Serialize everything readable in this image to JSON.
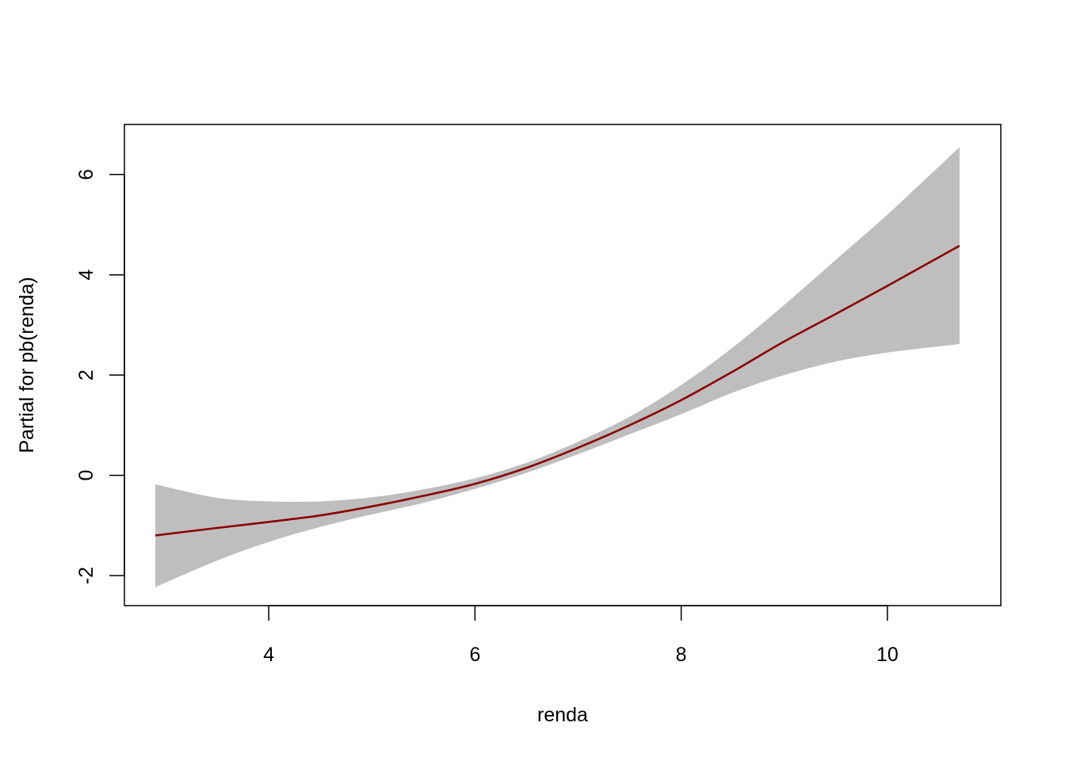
{
  "chart_data": {
    "type": "line",
    "title": "",
    "xlabel": "renda",
    "ylabel": "Partial for pb(renda)",
    "xlim": [
      2.6,
      11.1
    ],
    "ylim": [
      -2.6,
      7.0
    ],
    "x_ticks": [
      4,
      6,
      8,
      10
    ],
    "y_ticks": [
      -2,
      0,
      2,
      4,
      6
    ],
    "x_tick_labels": [
      "4",
      "6",
      "8",
      "10"
    ],
    "y_tick_labels": [
      "-2",
      "0",
      "2",
      "4",
      "6"
    ],
    "grid": false,
    "legend": "none",
    "colors": {
      "line": "#8B0000",
      "band": "#BEBEBE",
      "axis": "#000000"
    },
    "series": [
      {
        "role": "fit",
        "x": [
          2.9,
          3.5,
          4.0,
          4.5,
          5.0,
          5.5,
          6.0,
          6.5,
          7.0,
          7.5,
          8.0,
          8.5,
          9.0,
          9.5,
          10.0,
          10.7
        ],
        "y": [
          -1.2,
          -1.05,
          -0.93,
          -0.8,
          -0.62,
          -0.41,
          -0.17,
          0.15,
          0.55,
          1.0,
          1.5,
          2.07,
          2.67,
          3.22,
          3.78,
          4.58
        ]
      },
      {
        "role": "band",
        "x": [
          2.9,
          3.5,
          4.0,
          4.5,
          5.0,
          5.5,
          6.0,
          6.5,
          7.0,
          7.5,
          8.0,
          8.5,
          9.0,
          9.5,
          10.0,
          10.7
        ],
        "lower": [
          -2.23,
          -1.7,
          -1.33,
          -1.03,
          -0.78,
          -0.55,
          -0.27,
          0.05,
          0.42,
          0.82,
          1.22,
          1.65,
          2.0,
          2.27,
          2.45,
          2.62
        ],
        "upper": [
          -0.18,
          -0.45,
          -0.52,
          -0.52,
          -0.44,
          -0.28,
          -0.06,
          0.25,
          0.67,
          1.17,
          1.8,
          2.55,
          3.4,
          4.3,
          5.2,
          6.55
        ]
      }
    ]
  }
}
